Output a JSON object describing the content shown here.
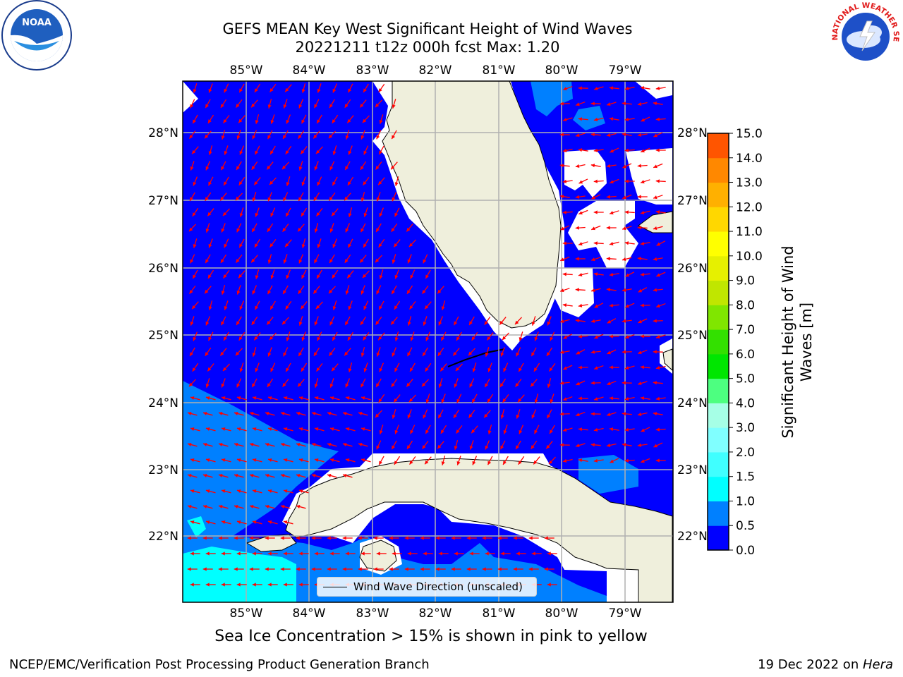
{
  "title_line1": "GEFS MEAN Key West Significant Height of Wind Waves",
  "title_line2": "20221211 t12z 000h fcst   Max: 1.20",
  "logos": {
    "left": "noaa-logo",
    "right": "nws-logo",
    "left_text": "NOAA",
    "right_text": "NATIONAL WEATHER SERVICE"
  },
  "map": {
    "lon_labels": [
      "85°W",
      "84°W",
      "83°W",
      "82°W",
      "81°W",
      "80°W",
      "79°W"
    ],
    "lat_labels": [
      "28°N",
      "27°N",
      "26°N",
      "25°N",
      "24°N",
      "23°N",
      "22°N"
    ],
    "legend_label": "Wind Wave Direction (unscaled)",
    "arrow_color": "#ff0000",
    "land_color": "#efefdc",
    "ocean_colors": {
      "0.0-0.5": "#0000ff",
      "0.5-1.0": "#0080ff",
      "1.0-1.5": "#00ffff"
    }
  },
  "colorbar": {
    "label": "Significant Height of Wind Waves [m]",
    "ticks": [
      "0.0",
      "0.5",
      "1.0",
      "1.5",
      "2.0",
      "3.0",
      "4.0",
      "5.0",
      "6.0",
      "7.0",
      "8.0",
      "9.0",
      "10.0",
      "11.0",
      "12.0",
      "13.0",
      "14.0",
      "15.0"
    ],
    "colors": [
      "#0000ff",
      "#0080ff",
      "#00ffff",
      "#40ffff",
      "#80ffff",
      "#a6ffe6",
      "#4dff80",
      "#00e600",
      "#33e000",
      "#80e600",
      "#c0e600",
      "#e6f000",
      "#ffff00",
      "#ffd700",
      "#ffb000",
      "#ff8800",
      "#ff5500",
      "#ff2a00",
      "#ff0000"
    ]
  },
  "footer_note": "Sea Ice Concentration > 15% is shown in pink to yellow",
  "footer_left": "NCEP/EMC/Verification Post Processing Product Generation Branch",
  "footer_right_prefix": "19 Dec 2022 on ",
  "footer_right_host": "Hera"
}
